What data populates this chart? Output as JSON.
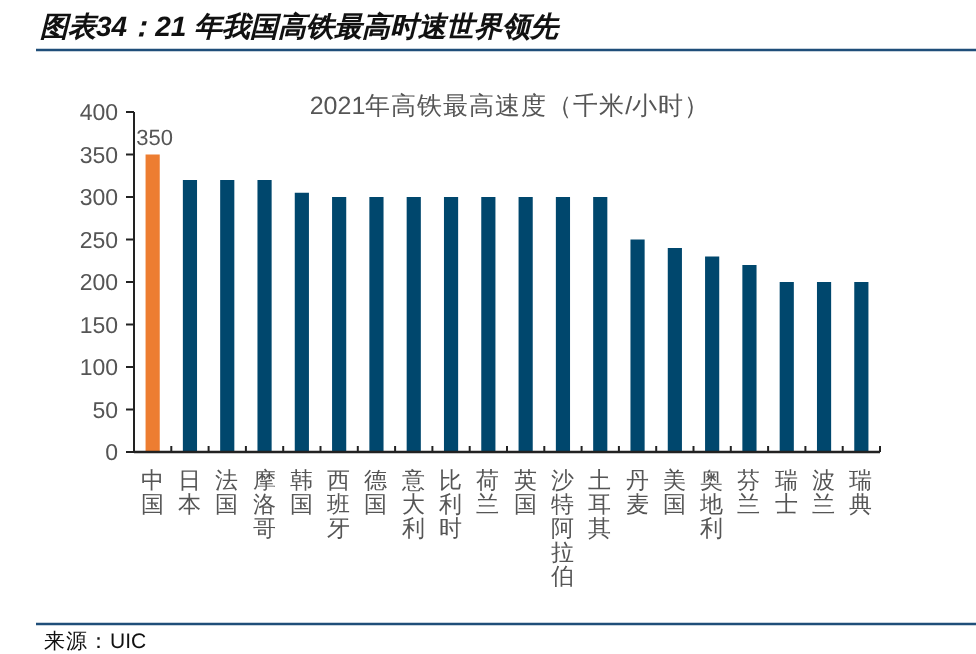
{
  "chart_data": {
    "type": "bar",
    "title": "图表34：21 年我国高铁最高时速世界领先",
    "subtitle": "2021年高铁最高速度（千米/小时）",
    "categories": [
      "中国",
      "日本",
      "法国",
      "摩洛哥",
      "韩国",
      "西班牙",
      "德国",
      "意大利",
      "比利时",
      "荷兰",
      "英国",
      "沙特阿拉伯",
      "土耳其",
      "丹麦",
      "美国",
      "奥地利",
      "芬兰",
      "瑞士",
      "波兰",
      "瑞典"
    ],
    "values": [
      350,
      320,
      320,
      320,
      305,
      300,
      300,
      300,
      300,
      300,
      300,
      300,
      300,
      250,
      240,
      230,
      220,
      200,
      200,
      200
    ],
    "colors": [
      "#ed7d31",
      "#00476d",
      "#00476d",
      "#00476d",
      "#00476d",
      "#00476d",
      "#00476d",
      "#00476d",
      "#00476d",
      "#00476d",
      "#00476d",
      "#00476d",
      "#00476d",
      "#00476d",
      "#00476d",
      "#00476d",
      "#00476d",
      "#00476d",
      "#00476d",
      "#00476d"
    ],
    "value_labels": [
      "350",
      null,
      null,
      null,
      null,
      null,
      null,
      null,
      null,
      null,
      null,
      null,
      null,
      null,
      null,
      null,
      null,
      null,
      null,
      null
    ],
    "ylim": [
      0,
      400
    ],
    "yticks": [
      0,
      50,
      100,
      150,
      200,
      250,
      300,
      350,
      400
    ],
    "annotations": [
      "来源：UIC"
    ]
  }
}
